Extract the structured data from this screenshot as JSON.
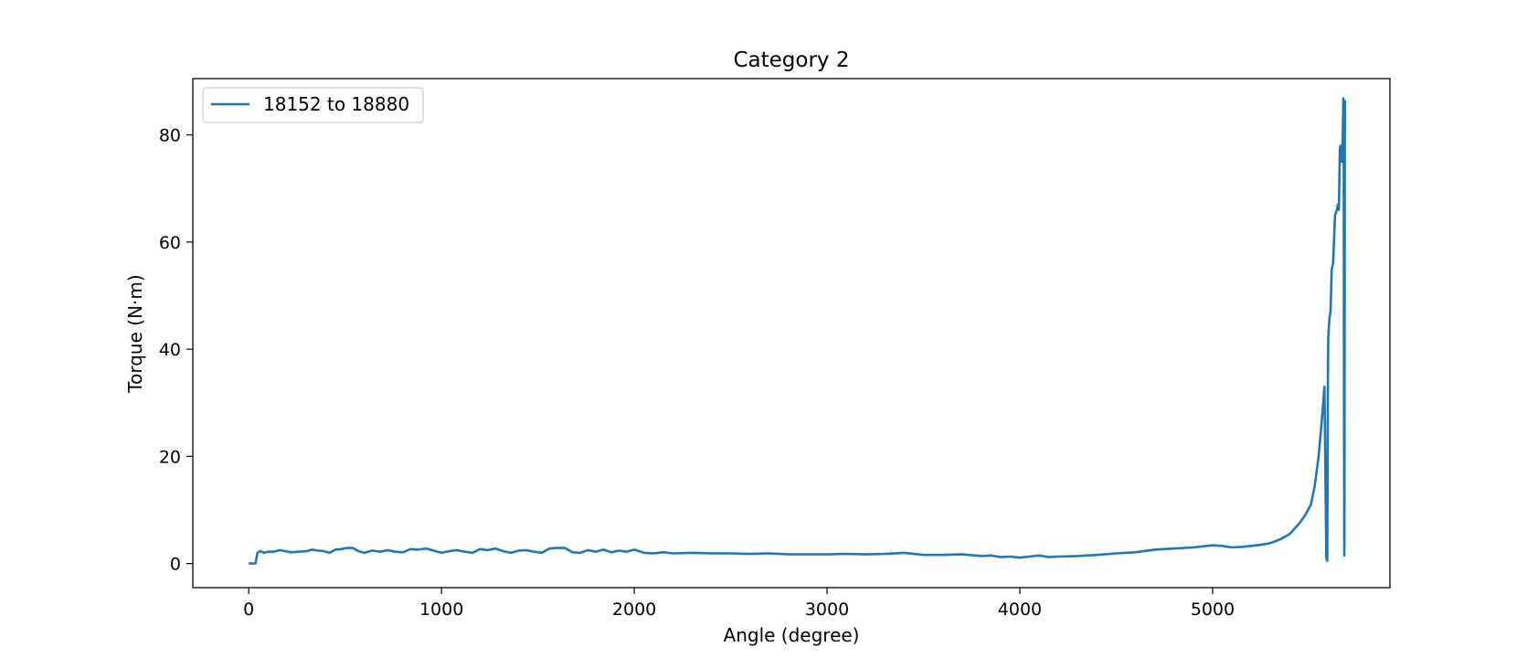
{
  "chart_data": {
    "type": "line",
    "title": "Category 2",
    "xlabel": "Angle (degree)",
    "ylabel": "Torque (N·m)",
    "xlim": [
      -290,
      5920
    ],
    "ylim": [
      -4.5,
      90.5
    ],
    "xticks": [
      0,
      1000,
      2000,
      3000,
      4000,
      5000
    ],
    "yticks": [
      0,
      20,
      40,
      60,
      80
    ],
    "grid": false,
    "legend_position": "top-left",
    "series": [
      {
        "name": "18152 to 18880",
        "color": "#1f77b4",
        "x": [
          0,
          20,
          35,
          45,
          60,
          80,
          100,
          130,
          160,
          190,
          220,
          260,
          300,
          330,
          360,
          390,
          420,
          450,
          480,
          510,
          540,
          570,
          600,
          640,
          680,
          720,
          760,
          800,
          840,
          880,
          920,
          960,
          1000,
          1040,
          1080,
          1120,
          1160,
          1200,
          1240,
          1280,
          1320,
          1360,
          1400,
          1440,
          1480,
          1520,
          1560,
          1600,
          1640,
          1680,
          1720,
          1760,
          1800,
          1840,
          1880,
          1920,
          1960,
          2000,
          2050,
          2100,
          2150,
          2200,
          2300,
          2400,
          2500,
          2600,
          2700,
          2800,
          2900,
          3000,
          3100,
          3200,
          3300,
          3400,
          3500,
          3600,
          3700,
          3800,
          3850,
          3900,
          3950,
          4000,
          4050,
          4100,
          4150,
          4200,
          4300,
          4400,
          4500,
          4600,
          4700,
          4800,
          4900,
          5000,
          5050,
          5100,
          5150,
          5200,
          5250,
          5300,
          5350,
          5400,
          5450,
          5480,
          5510,
          5530,
          5550,
          5565,
          5580,
          5590,
          5595,
          5598,
          5600,
          5603,
          5607,
          5612,
          5618,
          5625,
          5635,
          5645,
          5650,
          5655,
          5660,
          5665,
          5670,
          5675,
          5678,
          5680,
          5681,
          5682,
          5683,
          5684,
          5685,
          5686,
          5687
        ],
        "y": [
          0,
          0,
          0,
          2.0,
          2.3,
          2.0,
          2.2,
          2.2,
          2.5,
          2.3,
          2.1,
          2.2,
          2.3,
          2.6,
          2.4,
          2.3,
          2.0,
          2.6,
          2.7,
          2.9,
          2.9,
          2.3,
          2.0,
          2.4,
          2.2,
          2.5,
          2.2,
          2.1,
          2.7,
          2.6,
          2.8,
          2.4,
          2.0,
          2.3,
          2.5,
          2.2,
          2.0,
          2.7,
          2.5,
          2.8,
          2.3,
          2.0,
          2.4,
          2.5,
          2.2,
          2.0,
          2.8,
          2.9,
          2.9,
          2.1,
          2.0,
          2.5,
          2.2,
          2.6,
          2.1,
          2.4,
          2.2,
          2.6,
          2.0,
          1.9,
          2.1,
          1.9,
          2.0,
          1.9,
          1.9,
          1.8,
          1.9,
          1.7,
          1.7,
          1.7,
          1.8,
          1.7,
          1.8,
          2.0,
          1.6,
          1.6,
          1.7,
          1.4,
          1.5,
          1.2,
          1.3,
          1.1,
          1.3,
          1.5,
          1.2,
          1.3,
          1.4,
          1.6,
          1.9,
          2.1,
          2.6,
          2.8,
          3.0,
          3.4,
          3.3,
          3.0,
          3.1,
          3.3,
          3.5,
          3.8,
          4.5,
          5.5,
          7.5,
          9.0,
          11.0,
          14.5,
          20.0,
          26.0,
          33.0,
          1.0,
          0.5,
          35.0,
          42.0,
          44.0,
          46.0,
          47.0,
          55.0,
          56.0,
          65.0,
          66.0,
          67.0,
          66.0,
          77.5,
          78.0,
          75.0,
          79.0,
          86.8,
          85.0,
          38.0,
          20.0,
          1.5,
          5.0,
          40.0,
          80.0,
          86.5
        ]
      }
    ]
  }
}
